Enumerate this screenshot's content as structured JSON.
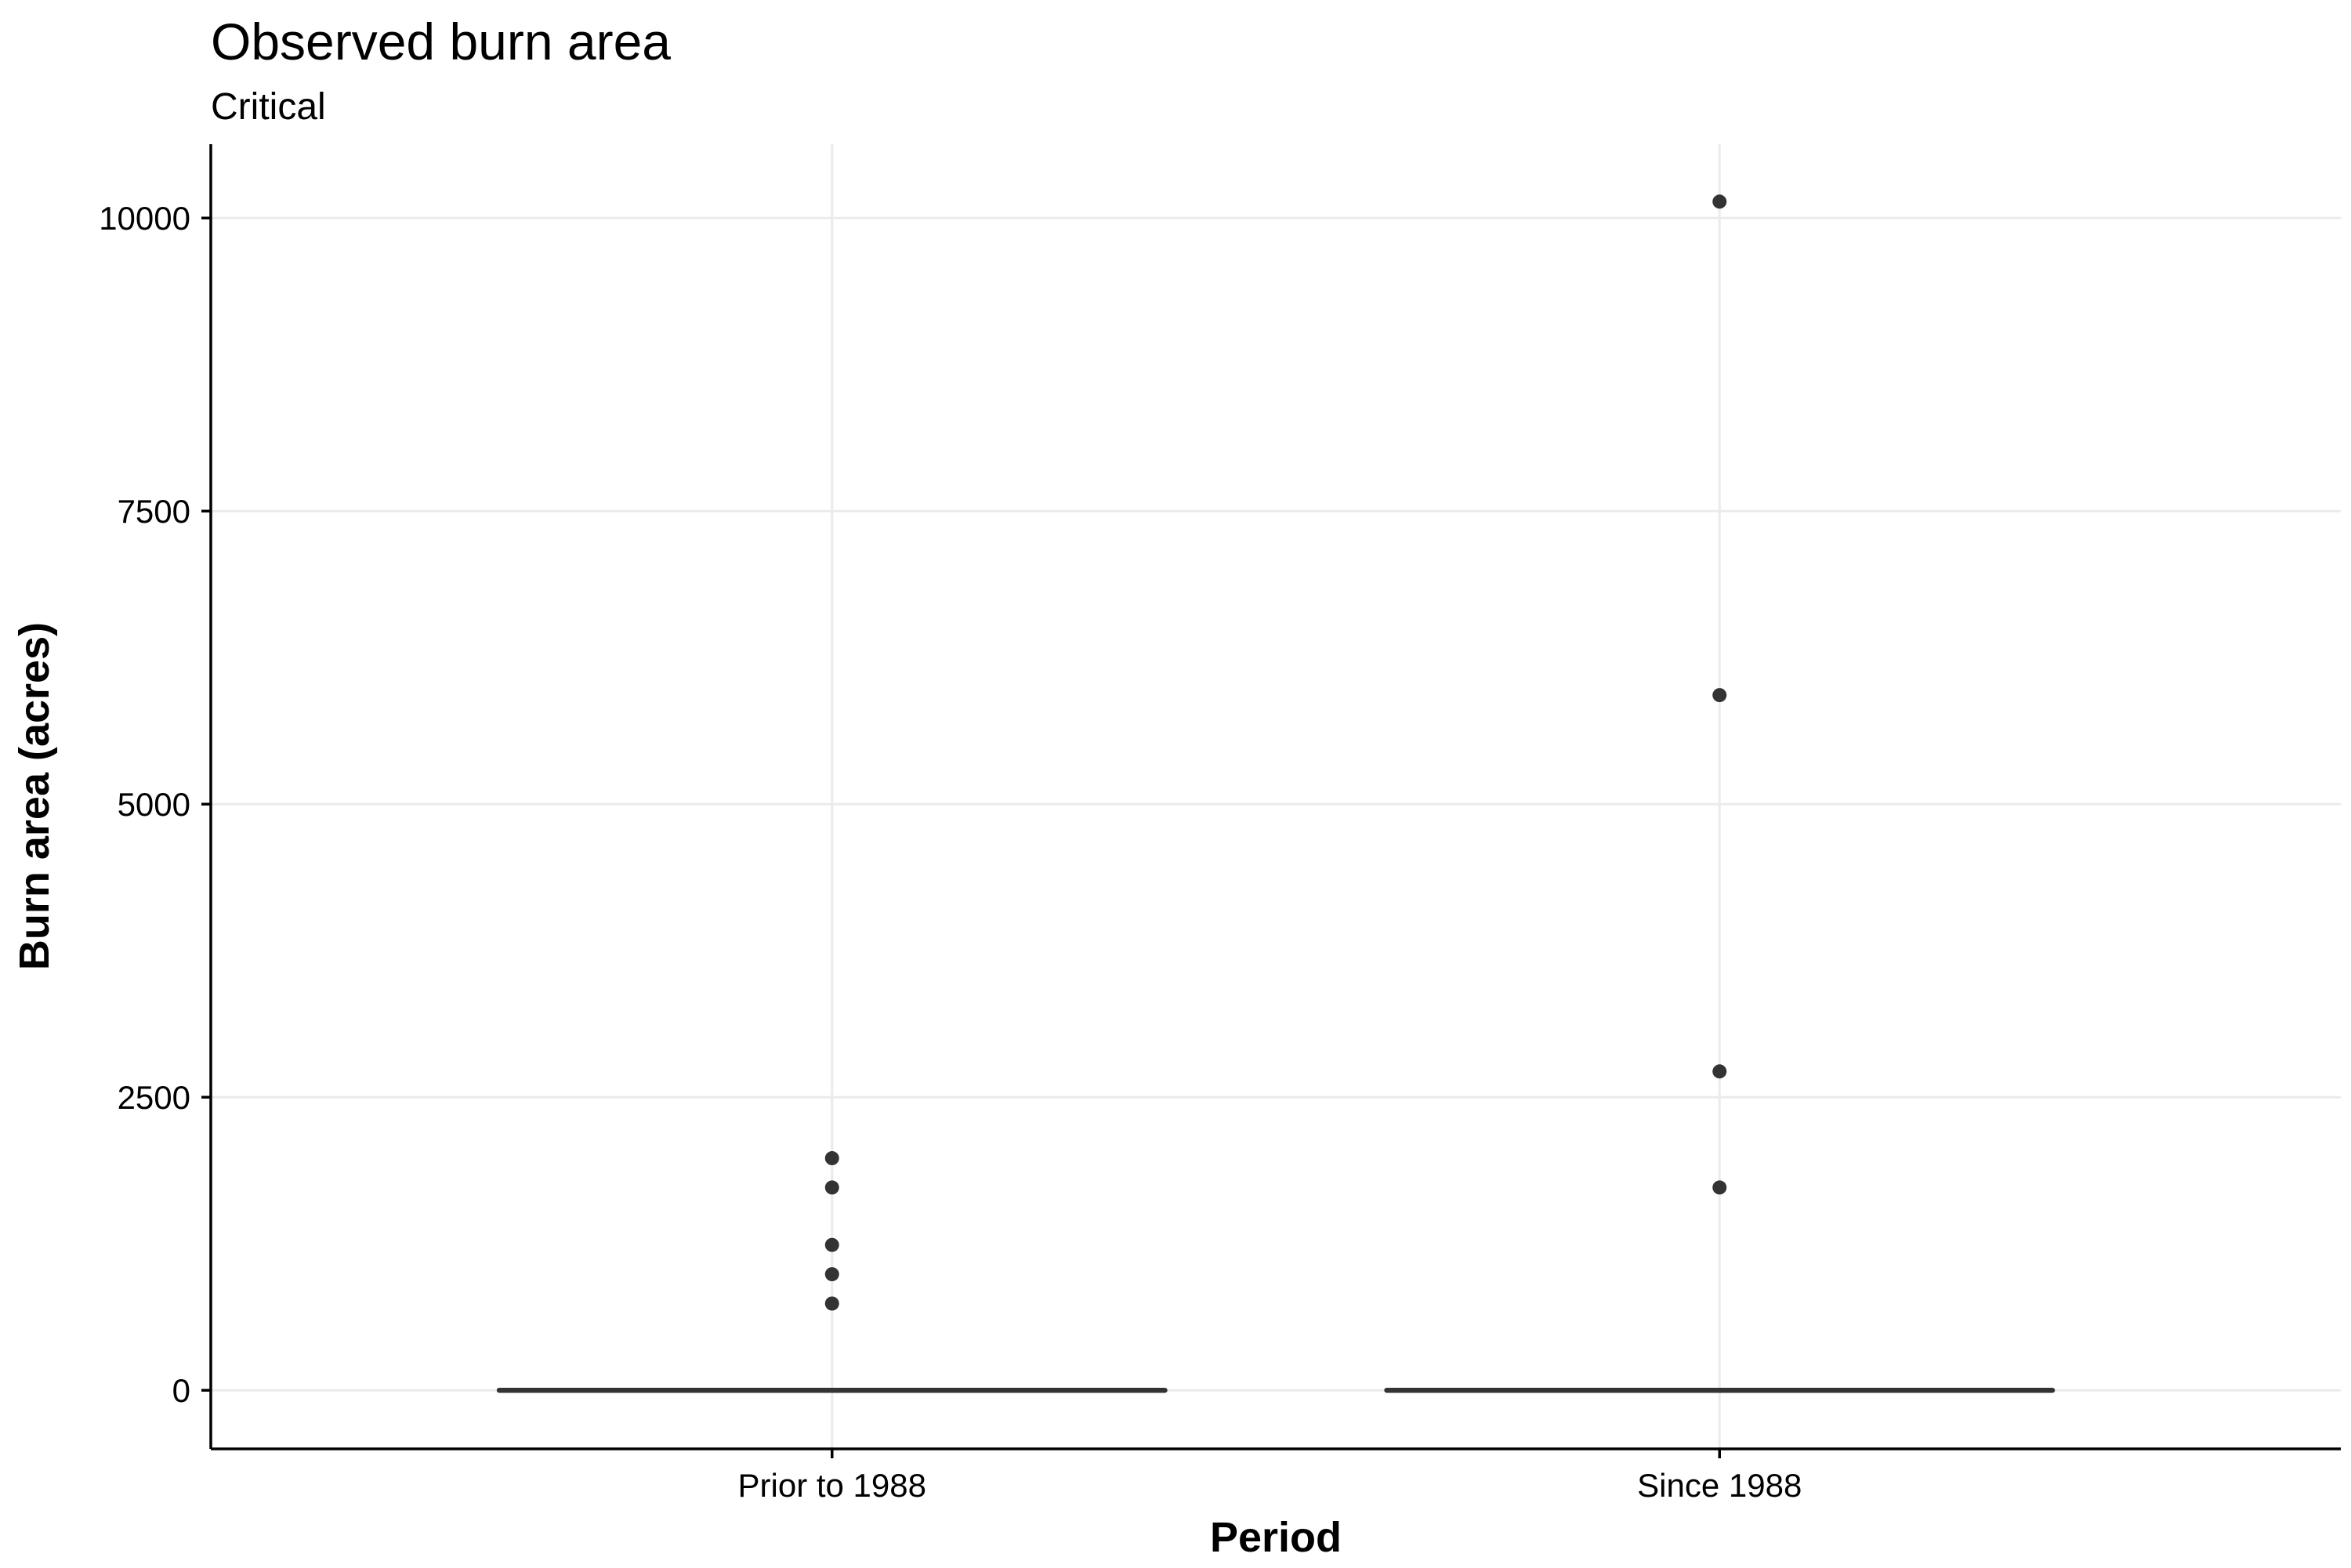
{
  "chart_data": {
    "type": "box",
    "title": "Observed burn area",
    "subtitle": "Critical",
    "xlabel": "Period",
    "ylabel": "Burn area (acres)",
    "categories": [
      "Prior to 1988",
      "Since 1988"
    ],
    "ylim": [
      -500,
      10630
    ],
    "yticks": [
      0,
      2500,
      5000,
      7500,
      10000
    ],
    "ytick_labels": [
      "0",
      "2500",
      "5000",
      "7500",
      "10000"
    ],
    "grid": true,
    "boxes": [
      {
        "category": "Prior to 1988",
        "min": 0,
        "q1": 0,
        "median": 0,
        "q3": 0,
        "max": 0,
        "outliers": [
          740,
          990,
          1240,
          1730,
          1980
        ]
      },
      {
        "category": "Since 1988",
        "min": 0,
        "q1": 0,
        "median": 0,
        "q3": 0,
        "max": 0,
        "outliers": [
          1730,
          2720,
          5930,
          10140
        ]
      }
    ],
    "colors": {
      "grid": "#ebebeb",
      "axis": "#000000",
      "box": "#333333",
      "point": "#333333",
      "background": "#ffffff"
    }
  }
}
